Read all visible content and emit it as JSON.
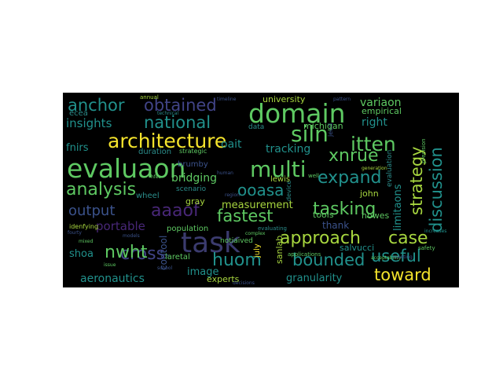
{
  "palette": {
    "yellow": "#f4e32c",
    "lime": "#a7d63f",
    "green": "#5ec962",
    "teal": "#21918c",
    "cyan": "#2b8c8a",
    "blue": "#3b528b",
    "indigo": "#414487",
    "purple": "#482777",
    "darkpurple": "#440154",
    "background": "#000000"
  },
  "words": {
    "evaluaon": "evaluaon",
    "task": "task",
    "domain": "domain",
    "architecture": "architecture",
    "analysis": "analysis",
    "siln": "siln",
    "multi": "multi",
    "itten": "itten",
    "national": "national",
    "obtained": "obtained",
    "anchor": "anchor",
    "expand": "expand",
    "xnrue": "xnrue",
    "strategy": "strategy",
    "discussion": "discussion",
    "approach": "approach",
    "case": "case",
    "tasking": "tasking",
    "fastest": "fastest",
    "cross": "cross",
    "aaaof": "aaaof",
    "output": "output",
    "huom": "huom",
    "bounded": "bounded",
    "useful": "useful",
    "toward": "toward",
    "nwht": "nwht",
    "ooasa": "ooasa",
    "insights": "insights",
    "right": "right",
    "variaon": "variaon",
    "empirical": "empirical",
    "university": "university",
    "michigan": "michigan",
    "oait": "oait",
    "tracking": "tracking",
    "bridging": "bridging",
    "measurement": "measurement",
    "portable": "portable",
    "fnirs": "fnirs",
    "shoa": "shoa",
    "aeronautics": "aeronautics",
    "image": "image",
    "granularity": "granularity",
    "experts": "experts",
    "limitaons": "limitaons",
    "thank": "thank",
    "john": "john",
    "tools": "tools",
    "howes": "howes",
    "salvucci": "salvucci",
    "sanlab": "sanlab",
    "gray": "gray",
    "lewis": "lewis",
    "device": "device",
    "cogtool": "cogtool",
    "duration": "duration",
    "brumby": "brumby",
    "data": "data",
    "scenario": "scenario",
    "population": "population",
    "laretal": "laretal",
    "july": "july",
    "evaluation": "evaluation",
    "ecea": "ecea",
    "wheel": "wheel",
    "strategic": "strategic",
    "jeed": "jeed",
    "notiaived": "notiaived",
    "idenfying": "idenfying",
    "evaluating": "evaluating",
    "applications": "applications",
    "safety": "safety",
    "annual": "annual",
    "technical": "technical",
    "well": "well",
    "human": "human",
    "mixed": "mixed",
    "models": "models",
    "school": "school",
    "precision": "precision",
    "fourty": "fourty",
    "decisions": "decisions",
    "increases": "increases",
    "acceptability": "acceptability",
    "meeting": "meeting",
    "complex": "complex",
    "hfes": "hfes",
    "region": "region",
    "issue": "issue",
    "generation": "generation",
    "pattern": "pattern",
    "timeline": "timeline"
  }
}
